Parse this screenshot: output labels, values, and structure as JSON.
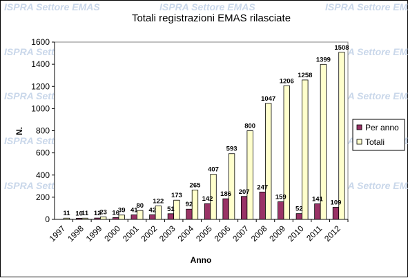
{
  "watermark": "ISPRA Settore EMAS",
  "chart_data": {
    "type": "bar",
    "title": "Totali registrazioni EMAS rilasciate",
    "xlabel": "Anno",
    "ylabel": "N.",
    "ylim": [
      0,
      1600
    ],
    "yticks": [
      0,
      200,
      400,
      600,
      800,
      1000,
      1200,
      1400,
      1600
    ],
    "categories": [
      "1997",
      "1998",
      "1999",
      "2000",
      "2001",
      "2002",
      "2003",
      "2004",
      "2005",
      "2006",
      "2007",
      "2008",
      "2009",
      "2010",
      "2011",
      "2012"
    ],
    "series": [
      {
        "name": "Per anno",
        "color": "#993366",
        "values": [
          null,
          10,
          12,
          16,
          41,
          42,
          51,
          92,
          142,
          186,
          207,
          247,
          159,
          52,
          141,
          109
        ],
        "labels": [
          "",
          "10",
          "12",
          "16",
          "41",
          "42",
          "51",
          "92",
          "142",
          "186",
          "207",
          "247",
          "159",
          "52",
          "141",
          "109"
        ]
      },
      {
        "name": "Totali",
        "color": "#ffffcc",
        "values": [
          11,
          11,
          23,
          39,
          80,
          122,
          173,
          265,
          407,
          593,
          800,
          1047,
          1206,
          1258,
          1399,
          1508
        ],
        "labels": [
          "11",
          "11",
          "23",
          "39",
          "80",
          "122",
          "173",
          "265",
          "407",
          "593",
          "800",
          "1047",
          "1206",
          "1258",
          "1399",
          "1508"
        ]
      }
    ],
    "grid": false,
    "legend": "right"
  }
}
